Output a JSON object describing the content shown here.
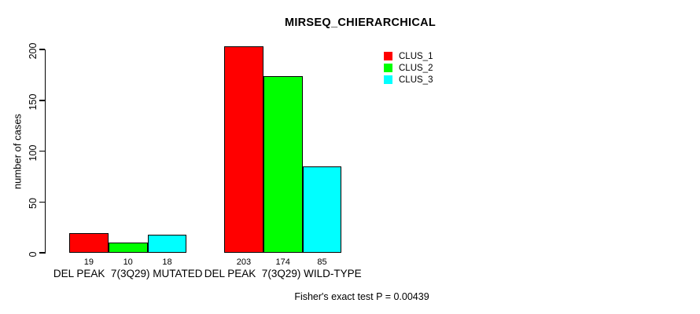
{
  "title": "MIRSEQ_CHIERARCHICAL",
  "chart_data": {
    "type": "bar",
    "title": "MIRSEQ_CHIERARCHICAL",
    "xlabel": "",
    "ylabel": "number of cases",
    "ylim": [
      0,
      200
    ],
    "yticks": [
      0,
      50,
      100,
      150,
      200
    ],
    "grid": false,
    "legend_position": "top-right",
    "categories": [
      "DEL PEAK  7(3Q29) MUTATED",
      "DEL PEAK  7(3Q29) WILD-TYPE"
    ],
    "series": [
      {
        "name": "CLUS_1",
        "color": "#ff0000",
        "values": [
          19,
          203
        ]
      },
      {
        "name": "CLUS_2",
        "color": "#00ff00",
        "values": [
          10,
          174
        ]
      },
      {
        "name": "CLUS_3",
        "color": "#00ffff",
        "values": [
          18,
          85
        ]
      }
    ],
    "bar_value_labels": [
      [
        19,
        10,
        18
      ],
      [
        203,
        174,
        85
      ]
    ],
    "annotation": "Fisher's exact test P = 0.00439"
  },
  "colors": {
    "background": "#ffffff",
    "axis": "#000000",
    "bar_border": "#000000",
    "text": "#000000"
  }
}
